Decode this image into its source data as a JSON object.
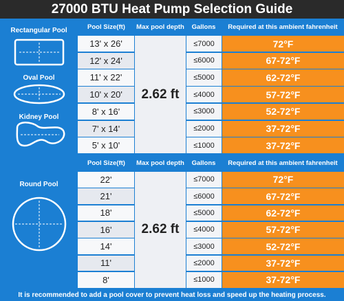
{
  "header": {
    "title": "27000 BTU Heat Pump Selection Guide"
  },
  "sections": [
    {
      "pools": [
        "Rectangular Pool",
        "Oval Pool",
        "Kidney Pool"
      ],
      "columns": [
        "Pool Size(ft)",
        "Max pool depth",
        "Gallons",
        "Required at this ambient fahrenheit"
      ],
      "depth": "2.62 ft",
      "rows": [
        [
          "13' x 26'",
          "≤7000",
          "72°F"
        ],
        [
          "12' x 24'",
          "≤6000",
          "67-72°F"
        ],
        [
          "11' x 22'",
          "≤5000",
          "62-72°F"
        ],
        [
          "10' x 20'",
          "≤4000",
          "57-72°F"
        ],
        [
          "8' x 16'",
          "≤3000",
          "52-72°F"
        ],
        [
          "7' x 14'",
          "≤2000",
          "37-72°F"
        ],
        [
          "5' x 10'",
          "≤1000",
          "37-72°F"
        ]
      ]
    },
    {
      "pools": [
        "Round Pool"
      ],
      "columns": [
        "Pool Size(ft)",
        "Max pool depth",
        "Gallons",
        "Required at this ambient fahrenheit"
      ],
      "depth": "2.62 ft",
      "rows": [
        [
          "22'",
          "≤7000",
          "72°F"
        ],
        [
          "21'",
          "≤6000",
          "67-72°F"
        ],
        [
          "18'",
          "≤5000",
          "62-72°F"
        ],
        [
          "16'",
          "≤4000",
          "57-72°F"
        ],
        [
          "14'",
          "≤3000",
          "52-72°F"
        ],
        [
          "11'",
          "≤2000",
          "37-72°F"
        ],
        [
          "8'",
          "≤1000",
          "37-72°F"
        ]
      ]
    }
  ],
  "footer": "It is recommended to add a pool cover to prevent heat loss and speed up the heating process."
}
